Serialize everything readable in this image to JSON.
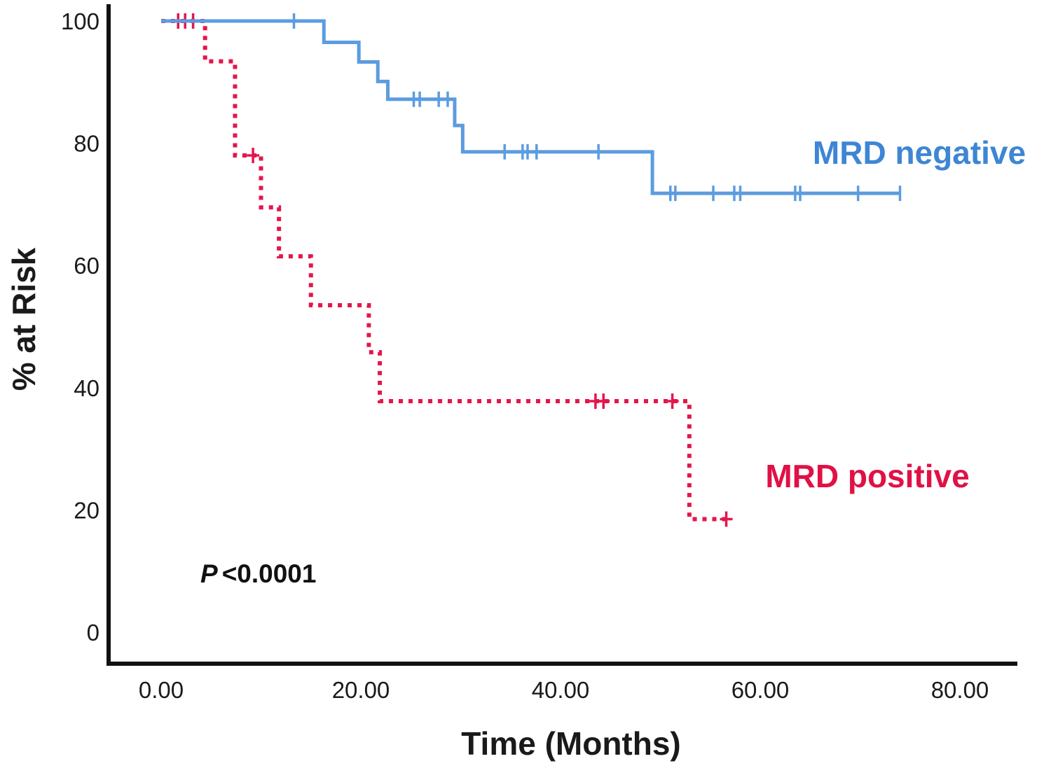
{
  "chart_data": {
    "type": "line",
    "subtype": "kaplan-meier-step",
    "title": "",
    "xlabel": "Time (Months)",
    "ylabel": "% at Risk",
    "xlim": [
      0,
      85
    ],
    "ylim": [
      0,
      100
    ],
    "grid": false,
    "legend_position": "on-plot",
    "x_tick_values": [
      0,
      20,
      40,
      60,
      80
    ],
    "x_tick_labels": [
      "0.00",
      "20.00",
      "40.00",
      "60.00",
      "80.00"
    ],
    "y_tick_values": [
      0,
      20,
      40,
      60,
      80,
      100
    ],
    "y_tick_labels": [
      "0",
      "20",
      "40",
      "60",
      "80",
      "100"
    ],
    "annotation": {
      "p_label": "P",
      "p_value": "<0.0001"
    },
    "series": [
      {
        "name": "MRD negative",
        "line_color": "#5C9CE0",
        "label_color": "#3E86D4",
        "line_style": "solid",
        "censor_style": "tick",
        "steps": [
          [
            0,
            100
          ],
          [
            16.3,
            96.5
          ],
          [
            19.8,
            93.3
          ],
          [
            21.7,
            90.1
          ],
          [
            22.7,
            87.2
          ],
          [
            29.4,
            82.9
          ],
          [
            30.2,
            78.6
          ],
          [
            49.2,
            71.8
          ]
        ],
        "end_time": 74,
        "censors": [
          [
            13.3,
            100
          ],
          [
            25.3,
            87.2
          ],
          [
            25.9,
            87.2
          ],
          [
            27.8,
            87.2
          ],
          [
            28.7,
            87.2
          ],
          [
            34.4,
            78.6
          ],
          [
            36.2,
            78.6
          ],
          [
            36.7,
            78.6
          ],
          [
            37.6,
            78.6
          ],
          [
            43.8,
            78.6
          ],
          [
            51.0,
            71.8
          ],
          [
            51.5,
            71.8
          ],
          [
            55.3,
            71.8
          ],
          [
            57.4,
            71.8
          ],
          [
            58.0,
            71.8
          ],
          [
            63.5,
            71.8
          ],
          [
            64.0,
            71.8
          ],
          [
            69.8,
            71.8
          ],
          [
            74.0,
            71.8
          ]
        ]
      },
      {
        "name": "MRD positive",
        "line_color": "#E4164B",
        "label_color": "#E01145",
        "line_style": "dotted",
        "censor_style": "plus",
        "steps": [
          [
            0,
            100
          ],
          [
            4.4,
            93.4
          ],
          [
            7.4,
            78.0
          ],
          [
            10.0,
            69.5
          ],
          [
            11.8,
            61.5
          ],
          [
            15.0,
            53.5
          ],
          [
            20.8,
            45.8
          ],
          [
            21.9,
            37.8
          ],
          [
            52.9,
            18.5
          ]
        ],
        "end_time": 56.8,
        "censors": [
          [
            1.7,
            100
          ],
          [
            2.4,
            100
          ],
          [
            3.2,
            100
          ],
          [
            9.2,
            78.0
          ],
          [
            43.5,
            37.8
          ],
          [
            44.3,
            37.8
          ],
          [
            51.2,
            37.8
          ],
          [
            56.6,
            18.5
          ]
        ]
      }
    ]
  }
}
